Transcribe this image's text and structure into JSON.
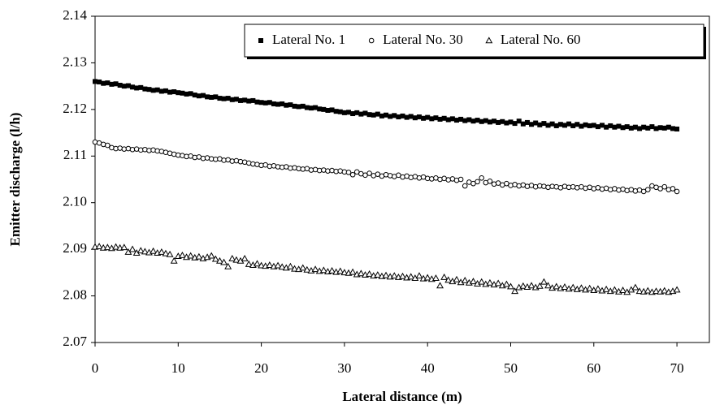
{
  "chart_data": {
    "type": "scatter",
    "xlabel": "Lateral distance (m)",
    "ylabel": "Emitter discharge (l/h)",
    "xlim": [
      0,
      74
    ],
    "ylim": [
      2.07,
      2.14
    ],
    "xticks": [
      0,
      10,
      20,
      30,
      40,
      50,
      60,
      70
    ],
    "yticks": [
      {
        "value": 2.07,
        "label": "2.07"
      },
      {
        "value": 2.08,
        "label": "2.08"
      },
      {
        "value": 2.09,
        "label": "2.09"
      },
      {
        "value": 2.1,
        "label": "2.10"
      },
      {
        "value": 2.11,
        "label": "2.11"
      },
      {
        "value": 2.12,
        "label": "2.12"
      },
      {
        "value": 2.13,
        "label": "2.13"
      },
      {
        "value": 2.14,
        "label": "2.14"
      }
    ],
    "grid": false,
    "legend": "upper right",
    "x": [
      0,
      0.5,
      1,
      1.5,
      2,
      2.5,
      3,
      3.5,
      4,
      4.5,
      5,
      5.5,
      6,
      6.5,
      7,
      7.5,
      8,
      8.5,
      9,
      9.5,
      10,
      10.5,
      11,
      11.5,
      12,
      12.5,
      13,
      13.5,
      14,
      14.5,
      15,
      15.5,
      16,
      16.5,
      17,
      17.5,
      18,
      18.5,
      19,
      19.5,
      20,
      20.5,
      21,
      21.5,
      22,
      22.5,
      23,
      23.5,
      24,
      24.5,
      25,
      25.5,
      26,
      26.5,
      27,
      27.5,
      28,
      28.5,
      29,
      29.5,
      30,
      30.5,
      31,
      31.5,
      32,
      32.5,
      33,
      33.5,
      34,
      34.5,
      35,
      35.5,
      36,
      36.5,
      37,
      37.5,
      38,
      38.5,
      39,
      39.5,
      40,
      40.5,
      41,
      41.5,
      42,
      42.5,
      43,
      43.5,
      44,
      44.5,
      45,
      45.5,
      46,
      46.5,
      47,
      47.5,
      48,
      48.5,
      49,
      49.5,
      50,
      50.5,
      51,
      51.5,
      52,
      52.5,
      53,
      53.5,
      54,
      54.5,
      55,
      55.5,
      56,
      56.5,
      57,
      57.5,
      58,
      58.5,
      59,
      59.5,
      60,
      60.5,
      61,
      61.5,
      62,
      62.5,
      63,
      63.5,
      64,
      64.5,
      65,
      65.5,
      66,
      66.5,
      67,
      67.5,
      68,
      68.5,
      69,
      69.5,
      70
    ],
    "series": [
      {
        "name": "Lateral No. 1",
        "color": "#000000",
        "marker": "square",
        "values": [
          2.126,
          2.1259,
          2.1256,
          2.1257,
          2.1254,
          2.1255,
          2.1252,
          2.125,
          2.1251,
          2.1248,
          2.1246,
          2.1247,
          2.1244,
          2.1243,
          2.1241,
          2.1242,
          2.1239,
          2.124,
          2.1237,
          2.1238,
          2.1236,
          2.1235,
          2.1233,
          2.1234,
          2.1231,
          2.1229,
          2.123,
          2.1227,
          2.1226,
          2.1227,
          2.1224,
          2.1223,
          2.1224,
          2.1221,
          2.1222,
          2.1219,
          2.122,
          2.1218,
          2.1219,
          2.1216,
          2.1215,
          2.1214,
          2.1215,
          2.1212,
          2.1211,
          2.1212,
          2.1209,
          2.121,
          2.1207,
          2.1206,
          2.1207,
          2.1204,
          2.1203,
          2.1204,
          2.1201,
          2.12,
          2.1198,
          2.1199,
          2.1196,
          2.1195,
          2.1193,
          2.1194,
          2.1191,
          2.1193,
          2.119,
          2.1192,
          2.1189,
          2.1188,
          2.119,
          2.1186,
          2.1188,
          2.1185,
          2.1187,
          2.1184,
          2.1186,
          2.1183,
          2.1185,
          2.1182,
          2.1184,
          2.1181,
          2.1183,
          2.118,
          2.1182,
          2.1179,
          2.1181,
          2.1178,
          2.118,
          2.1177,
          2.1179,
          2.1176,
          2.1178,
          2.1175,
          2.1177,
          2.1174,
          2.1176,
          2.1173,
          2.1175,
          2.1172,
          2.1174,
          2.1171,
          2.1173,
          2.117,
          2.1175,
          2.1169,
          2.1172,
          2.1168,
          2.1171,
          2.1167,
          2.117,
          2.1166,
          2.1169,
          2.1165,
          2.1168,
          2.1166,
          2.1169,
          2.1165,
          2.1168,
          2.1164,
          2.1167,
          2.1165,
          2.1166,
          2.1163,
          2.1166,
          2.1162,
          2.1165,
          2.1162,
          2.1164,
          2.1161,
          2.1163,
          2.116,
          2.1162,
          2.1159,
          2.1162,
          2.116,
          2.1163,
          2.1159,
          2.1161,
          2.116,
          2.1162,
          2.1159,
          2.1158
        ]
      },
      {
        "name": "Lateral No. 30",
        "color": "#000000",
        "marker": "circle",
        "values": [
          2.113,
          2.1128,
          2.1125,
          2.1123,
          2.1118,
          2.1116,
          2.1117,
          2.1115,
          2.1116,
          2.1114,
          2.1115,
          2.1113,
          2.1114,
          2.1112,
          2.1113,
          2.1111,
          2.111,
          2.1108,
          2.1106,
          2.1104,
          2.1102,
          2.1101,
          2.1099,
          2.11,
          2.1097,
          2.1098,
          2.1095,
          2.1096,
          2.1094,
          2.1093,
          2.1094,
          2.1091,
          2.1092,
          2.1089,
          2.109,
          2.1088,
          2.1087,
          2.1085,
          2.1083,
          2.1082,
          2.108,
          2.1081,
          2.1078,
          2.1079,
          2.1077,
          2.1076,
          2.1077,
          2.1074,
          2.1075,
          2.1073,
          2.1072,
          2.1073,
          2.107,
          2.1071,
          2.1069,
          2.107,
          2.1068,
          2.1069,
          2.1067,
          2.1068,
          2.1066,
          2.1065,
          2.106,
          2.1066,
          2.1062,
          2.1059,
          2.1063,
          2.1058,
          2.1061,
          2.1057,
          2.106,
          2.1058,
          2.1056,
          2.1059,
          2.1055,
          2.1057,
          2.1054,
          2.1056,
          2.1053,
          2.1055,
          2.1052,
          2.1051,
          2.1053,
          2.105,
          2.1052,
          2.1049,
          2.1051,
          2.1048,
          2.105,
          2.1036,
          2.1044,
          2.1041,
          2.1045,
          2.1053,
          2.1043,
          2.1046,
          2.104,
          2.1042,
          2.1038,
          2.1041,
          2.1037,
          2.1039,
          2.1036,
          2.1038,
          2.1035,
          2.1037,
          2.1034,
          2.1036,
          2.1035,
          2.1033,
          2.1035,
          2.1034,
          2.1032,
          2.1035,
          2.1033,
          2.1034,
          2.1032,
          2.1034,
          2.1031,
          2.1033,
          2.103,
          2.1032,
          2.1029,
          2.1031,
          2.1028,
          2.103,
          2.1027,
          2.1029,
          2.1026,
          2.1028,
          2.1025,
          2.1027,
          2.1024,
          2.1028,
          2.1036,
          2.1033,
          2.103,
          2.1034,
          2.1028,
          2.103,
          2.1024
        ]
      },
      {
        "name": "Lateral No. 60",
        "color": "#000000",
        "marker": "triangle",
        "values": [
          2.0905,
          2.0906,
          2.0903,
          2.0904,
          2.0902,
          2.0905,
          2.0903,
          2.0904,
          2.0894,
          2.09,
          2.0892,
          2.0897,
          2.0895,
          2.0893,
          2.0896,
          2.0892,
          2.0894,
          2.0891,
          2.0889,
          2.0875,
          2.0885,
          2.0887,
          2.0883,
          2.0886,
          2.0882,
          2.0884,
          2.088,
          2.0883,
          2.0886,
          2.0879,
          2.0875,
          2.0872,
          2.0863,
          2.088,
          2.0877,
          2.0875,
          2.088,
          2.0868,
          2.0866,
          2.0869,
          2.0865,
          2.0864,
          2.0866,
          2.0863,
          2.0865,
          2.0862,
          2.086,
          2.0863,
          2.0858,
          2.0857,
          2.086,
          2.0856,
          2.0854,
          2.0857,
          2.0853,
          2.0855,
          2.0852,
          2.0854,
          2.0851,
          2.0853,
          2.085,
          2.0849,
          2.0851,
          2.0846,
          2.0848,
          2.0845,
          2.0847,
          2.0843,
          2.0845,
          2.0842,
          2.0844,
          2.0841,
          2.0843,
          2.084,
          2.0842,
          2.0839,
          2.0841,
          2.0838,
          2.0843,
          2.0837,
          2.0839,
          2.0836,
          2.0838,
          2.0822,
          2.084,
          2.0834,
          2.0831,
          2.0835,
          2.0829,
          2.0833,
          2.0828,
          2.0831,
          2.0826,
          2.083,
          2.0825,
          2.0828,
          2.0824,
          2.0827,
          2.0822,
          2.0825,
          2.082,
          2.081,
          2.0818,
          2.0821,
          2.0819,
          2.0822,
          2.0818,
          2.0821,
          2.083,
          2.0822,
          2.0817,
          2.082,
          2.0816,
          2.0819,
          2.0815,
          2.0818,
          2.0814,
          2.0817,
          2.0813,
          2.0816,
          2.0812,
          2.0815,
          2.0811,
          2.0814,
          2.081,
          2.0813,
          2.0809,
          2.0812,
          2.0808,
          2.0813,
          2.0818,
          2.081,
          2.0809,
          2.0811,
          2.0808,
          2.081,
          2.0809,
          2.0811,
          2.0808,
          2.081,
          2.0813
        ]
      }
    ]
  }
}
